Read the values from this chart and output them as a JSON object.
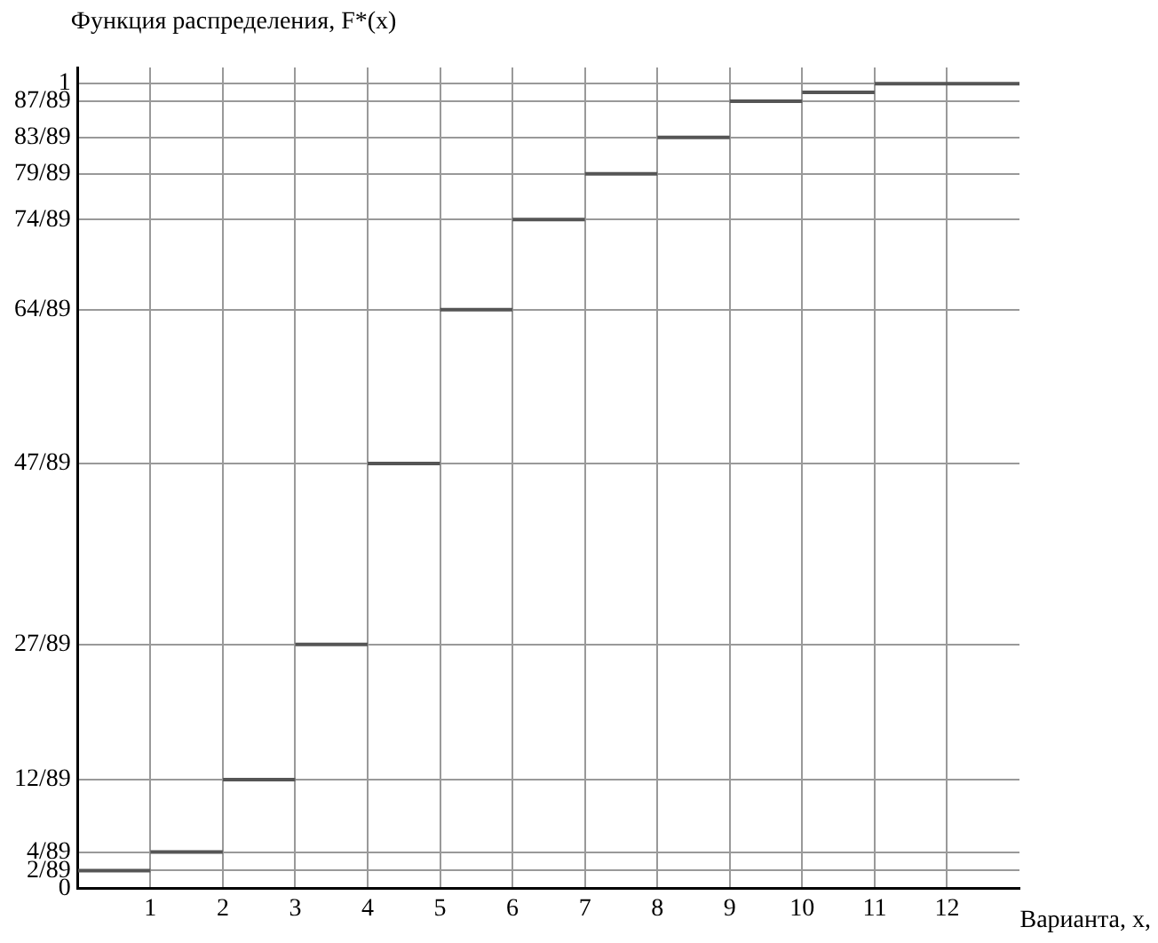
{
  "chart_data": {
    "type": "step",
    "ylabel": "Функция распределения, F*(x)",
    "xlabel": "Варианта, x,",
    "x": [
      0,
      1,
      2,
      3,
      4,
      5,
      6,
      7,
      8,
      9,
      10,
      11,
      13
    ],
    "values": [
      0.022,
      0.045,
      0.135,
      0.303,
      0.528,
      0.719,
      0.831,
      0.888,
      0.933,
      0.978,
      0.989,
      1,
      1
    ],
    "color": "#555555",
    "xlim": [
      0,
      13
    ],
    "ylim": [
      0,
      1.02
    ],
    "xticks": [
      1,
      2,
      3,
      4,
      5,
      6,
      7,
      8,
      9,
      10,
      11,
      12
    ],
    "yticks": [
      {
        "value": 0,
        "label": "0"
      },
      {
        "value": 0.022,
        "label": "2/89"
      },
      {
        "value": 0.045,
        "label": "4/89"
      },
      {
        "value": 0.135,
        "label": "12/89"
      },
      {
        "value": 0.303,
        "label": "27/89"
      },
      {
        "value": 0.528,
        "label": "47/89"
      },
      {
        "value": 0.719,
        "label": "64/89"
      },
      {
        "value": 0.831,
        "label": "74/89"
      },
      {
        "value": 0.888,
        "label": "79/89"
      },
      {
        "value": 0.933,
        "label": "83/89"
      },
      {
        "value": 0.978,
        "label": "87/89"
      },
      {
        "value": 1,
        "label": "1"
      }
    ],
    "grid": true
  }
}
